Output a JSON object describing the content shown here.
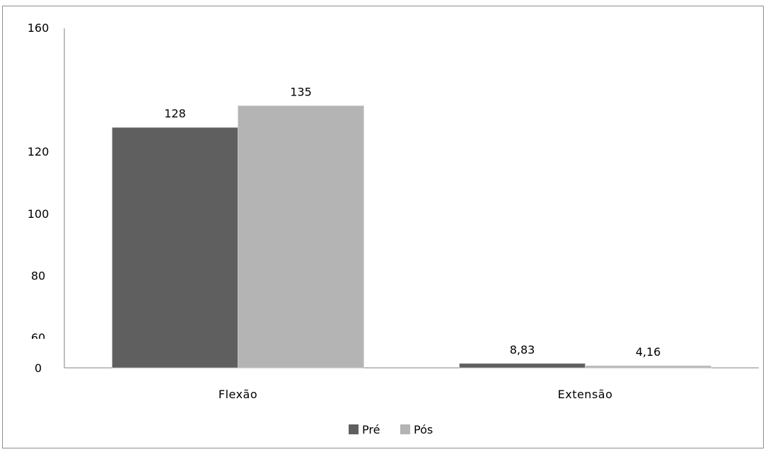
{
  "chart_data": {
    "type": "bar",
    "title": "",
    "xlabel": "",
    "ylabel": "",
    "categories": [
      "Flexão",
      "Extensão"
    ],
    "y_tick_labels": [
      "0",
      "60",
      "80",
      "100",
      "120",
      "160"
    ],
    "series": [
      {
        "name": "Pré",
        "values": [
          128,
          8.83
        ],
        "value_labels": [
          "128",
          "8,83"
        ],
        "color": "#5f5f5f"
      },
      {
        "name": "Pós",
        "values": [
          135,
          4.16
        ],
        "value_labels": [
          "135",
          "4,16"
        ],
        "color": "#b4b4b4"
      }
    ],
    "ylim": [
      0,
      160
    ],
    "axis_break": "between 0 and 60",
    "grid": false,
    "legend_position": "bottom-center"
  }
}
